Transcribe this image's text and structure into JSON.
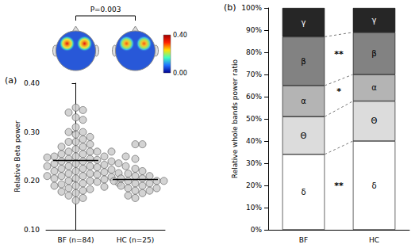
{
  "chart_data": [
    {
      "type": "scatter",
      "title": "(a)",
      "y_label": "Relative Beta power",
      "categories": [
        "BF (n=84)",
        "HC (n=25)"
      ],
      "values": [
        [
          0.35,
          0.345,
          0.34,
          0.33,
          0.325,
          0.31,
          0.3,
          0.3,
          0.295,
          0.29,
          0.285,
          0.28,
          0.28,
          0.275,
          0.27,
          0.27,
          0.265,
          0.26,
          0.26,
          0.26,
          0.255,
          0.255,
          0.25,
          0.25,
          0.25,
          0.248,
          0.245,
          0.245,
          0.243,
          0.24,
          0.24,
          0.24,
          0.238,
          0.236,
          0.235,
          0.235,
          0.233,
          0.23,
          0.23,
          0.23,
          0.228,
          0.226,
          0.225,
          0.225,
          0.223,
          0.22,
          0.22,
          0.22,
          0.218,
          0.216,
          0.215,
          0.215,
          0.213,
          0.21,
          0.21,
          0.21,
          0.208,
          0.206,
          0.205,
          0.205,
          0.203,
          0.2,
          0.2,
          0.2,
          0.198,
          0.196,
          0.195,
          0.193,
          0.19,
          0.19,
          0.188,
          0.185,
          0.183,
          0.18,
          0.178,
          0.175,
          0.17,
          0.165,
          0.16,
          0.245,
          0.25,
          0.24,
          0.26,
          0.23
        ],
        [
          0.275,
          0.275,
          0.245,
          0.225,
          0.22,
          0.215,
          0.21,
          0.21,
          0.205,
          0.205,
          0.2,
          0.2,
          0.2,
          0.2,
          0.195,
          0.195,
          0.19,
          0.19,
          0.185,
          0.185,
          0.18,
          0.18,
          0.175,
          0.17,
          0.165
        ]
      ],
      "means": [
        0.242,
        0.203
      ],
      "color": "#c8c8c8",
      "marker": "circle",
      "ylim": [
        0.1,
        0.4
      ],
      "yticks": [
        {
          "value": 0.1,
          "label": "0.10"
        },
        {
          "value": 0.2,
          "label": "0.20"
        },
        {
          "value": 0.3,
          "label": "0.30"
        },
        {
          "value": 0.4,
          "label": "0.40"
        }
      ],
      "grid": false,
      "annotation": "P=0.003",
      "colorbar": {
        "range": [
          0,
          0.4
        ],
        "ticks": [
          {
            "value": 0,
            "label": "0.00"
          },
          {
            "value": 0.4,
            "label": "0.40"
          }
        ]
      }
    },
    {
      "type": "bar",
      "title": "(b)",
      "y_label": "Relative whole bands power ratio",
      "categories": [
        "BF",
        "HC"
      ],
      "stacked": true,
      "series": [
        {
          "name": "δ",
          "color": "#ffffff",
          "values": [
            34,
            40
          ]
        },
        {
          "name": "Θ",
          "color": "#dcdcdc",
          "values": [
            17,
            18
          ]
        },
        {
          "name": "α",
          "color": "#b4b4b4",
          "values": [
            14,
            12
          ]
        },
        {
          "name": "β",
          "color": "#828282",
          "values": [
            22,
            19
          ]
        },
        {
          "name": "γ",
          "color": "#262626",
          "values": [
            13,
            11
          ]
        }
      ],
      "annotations": [
        {
          "text": "**",
          "series": "β"
        },
        {
          "text": "*",
          "series": "α"
        },
        {
          "text": "**",
          "series": "δ"
        }
      ],
      "ylim": [
        0,
        100
      ],
      "yticks": [
        {
          "value": 0,
          "label": "0%"
        },
        {
          "value": 10,
          "label": "10%"
        },
        {
          "value": 20,
          "label": "20%"
        },
        {
          "value": 30,
          "label": "30%"
        },
        {
          "value": 40,
          "label": "40%"
        },
        {
          "value": 50,
          "label": "50%"
        },
        {
          "value": 60,
          "label": "60%"
        },
        {
          "value": 70,
          "label": "70%"
        },
        {
          "value": 80,
          "label": "80%"
        },
        {
          "value": 90,
          "label": "90%"
        },
        {
          "value": 100,
          "label": "100%"
        }
      ],
      "grid": false
    }
  ]
}
